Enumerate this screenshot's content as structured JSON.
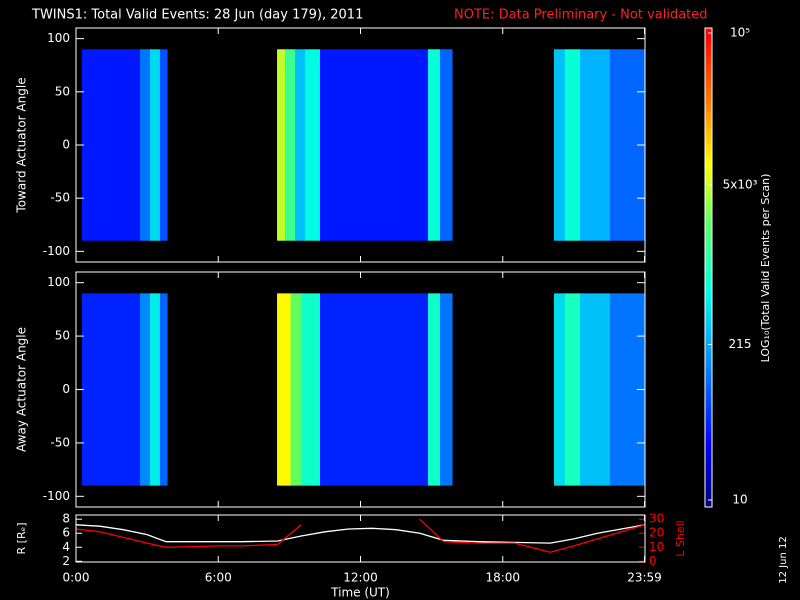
{
  "title": "TWINS1: Total Valid Events: 28 Jun (day 179), 2011",
  "note": "NOTE: Data Preliminary - Not validated",
  "date_stamp": "12 Jun 12",
  "colorbar": {
    "label": "LOG₁₀(Total Valid Events per Scan)",
    "log": true,
    "lim": [
      10,
      100000
    ],
    "ticks": [
      {
        "value": 10,
        "label": "10"
      },
      {
        "value": 215,
        "label": "215"
      },
      {
        "value": 5000,
        "label": "5x10³"
      },
      {
        "value": 100000,
        "label": "10⁵"
      }
    ],
    "colors": [
      [
        0,
        "#000080"
      ],
      [
        0.12,
        "#0000ff"
      ],
      [
        0.35,
        "#00b4ff"
      ],
      [
        0.45,
        "#00ffe0"
      ],
      [
        0.6,
        "#60ff60"
      ],
      [
        0.72,
        "#ffff00"
      ],
      [
        0.85,
        "#ff8000"
      ],
      [
        1,
        "#ff0000"
      ]
    ]
  },
  "chart_data": [
    {
      "type": "heatmap",
      "ylabel": "Toward Actuator Angle",
      "xlim": [
        0,
        24
      ],
      "ylim": [
        -110,
        110
      ],
      "yticks": [
        -100,
        -50,
        0,
        50,
        100
      ],
      "angle_range": [
        -90,
        90
      ],
      "start": [
        0.25,
        2.7,
        3.12,
        3.54,
        8.48,
        8.81,
        9.24,
        9.66,
        10.29,
        14.85,
        15.35,
        20.16,
        20.62,
        21.26,
        22.52
      ],
      "end": [
        2.7,
        3.12,
        3.54,
        3.84,
        8.81,
        9.24,
        9.66,
        10.29,
        14.85,
        15.35,
        15.86,
        20.62,
        21.26,
        22.52,
        24.0
      ],
      "values": [
        40,
        120,
        400,
        80,
        5000,
        1500,
        300,
        600,
        40,
        700,
        100,
        300,
        700,
        250,
        100
      ]
    },
    {
      "type": "heatmap",
      "ylabel": "Away Actuator Angle",
      "xlim": [
        0,
        24
      ],
      "ylim": [
        -110,
        110
      ],
      "yticks": [
        -100,
        -50,
        0,
        50,
        100
      ],
      "angle_range": [
        -90,
        90
      ],
      "start": [
        0.25,
        2.7,
        3.12,
        3.54,
        8.48,
        9.05,
        9.5,
        10.29,
        14.85,
        15.35,
        20.16,
        20.62,
        21.26,
        22.52
      ],
      "end": [
        2.7,
        3.12,
        3.54,
        3.84,
        9.05,
        9.5,
        10.29,
        14.85,
        15.35,
        15.86,
        20.62,
        21.26,
        22.52,
        24.0
      ],
      "values": [
        45,
        150,
        500,
        100,
        8000,
        2500,
        800,
        45,
        800,
        120,
        400,
        900,
        300,
        120
      ]
    },
    {
      "type": "line",
      "xlabel": "Time (UT)",
      "xlim": [
        0,
        24
      ],
      "xticks": [
        {
          "value": 0,
          "label": "0:00"
        },
        {
          "value": 6,
          "label": "6:00"
        },
        {
          "value": 12,
          "label": "12:00"
        },
        {
          "value": 18,
          "label": "18:00"
        },
        {
          "value": 23.98,
          "label": "23:59"
        }
      ],
      "ylabel": "R [Rₑ]",
      "ylim": [
        1.9,
        8.6
      ],
      "yticks": [
        2,
        4,
        6,
        8
      ],
      "y2label": "L Shell",
      "y2lim": [
        -0.5,
        33
      ],
      "y2ticks": [
        0,
        10,
        20,
        30
      ],
      "x": [
        0,
        1,
        2,
        3,
        3.8,
        5,
        6,
        7,
        8.5,
        9.5,
        10.5,
        11.5,
        12.5,
        13.5,
        14.5,
        15.5,
        17,
        18.5,
        20,
        21,
        22,
        23,
        24
      ],
      "series": [
        {
          "color": "#ffffff",
          "values": [
            7.2,
            7,
            6.5,
            5.8,
            4.8,
            4.8,
            4.8,
            4.8,
            4.9,
            5.6,
            6.2,
            6.6,
            6.7,
            6.5,
            6,
            5,
            4.8,
            4.7,
            4.6,
            5.2,
            6,
            6.6,
            7.2
          ]
        },
        {
          "color": "#ff0000",
          "axis": "y2",
          "values": [
            23,
            21,
            17,
            13,
            10,
            10.5,
            11,
            11,
            12,
            26,
            null,
            null,
            null,
            null,
            30,
            14,
            13,
            13,
            6.5,
            11,
            16,
            21,
            26
          ]
        }
      ]
    }
  ]
}
